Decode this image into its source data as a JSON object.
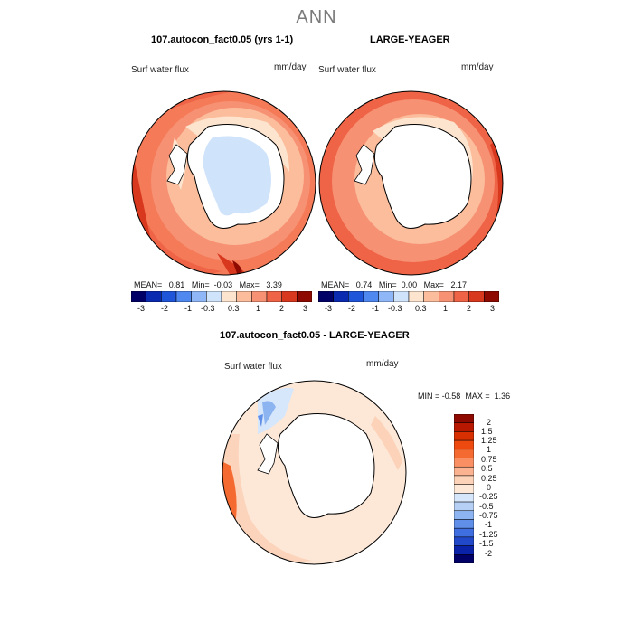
{
  "figure_title": "ANN",
  "palette_levels": [
    -3,
    -2,
    -1,
    -0.3,
    0.3,
    1,
    2,
    3
  ],
  "panels": [
    {
      "title": "107.autocon_fact0.05 (yrs 1-1)",
      "variable": "Surf water flux",
      "units": "mm/day",
      "stats": {
        "mean_label": "MEAN=",
        "mean": "0.81",
        "min_label": "Min=",
        "min": "-0.03",
        "max_label": "Max=",
        "max": "3.39"
      },
      "colorbar_ticks": [
        "-3",
        "-2",
        "-1",
        "-0.3",
        "0.3",
        "1",
        "2",
        "3"
      ]
    },
    {
      "title": "LARGE-YEAGER",
      "variable": "Surf water flux",
      "units": "mm/day",
      "stats": {
        "mean_label": "MEAN=",
        "mean": "0.74",
        "min_label": "Min=",
        "min": "0.00",
        "max_label": "Max=",
        "max": "2.17"
      },
      "colorbar_ticks": [
        "-3",
        "-2",
        "-1",
        "-0.3",
        "0.3",
        "1",
        "2",
        "3"
      ]
    }
  ],
  "difference": {
    "title": "107.autocon_fact0.05 - LARGE-YEAGER",
    "variable": "Surf water flux",
    "units": "mm/day",
    "min_label": "MIN =",
    "min": "-0.58",
    "max_label": "MAX =",
    "max": "1.36",
    "colorbar_ticks": [
      "2",
      "1.5",
      "1.25",
      "1",
      "0.75",
      "0.5",
      "0.25",
      "0",
      "-0.25",
      "-0.5",
      "-0.75",
      "-1",
      "-1.25",
      "-1.5",
      "-2"
    ]
  },
  "colors": {
    "abs_palette": [
      "#000066",
      "#0a2ab0",
      "#1f55d8",
      "#4f88ef",
      "#8fb7f7",
      "#cfe3fb",
      "#fde4cf",
      "#fbbd9c",
      "#f79174",
      "#ef6446",
      "#d8381e",
      "#8e0a00"
    ],
    "diff_palette": [
      "#8e0a00",
      "#b81800",
      "#d83000",
      "#ee4a10",
      "#f56a30",
      "#f98f62",
      "#fbb290",
      "#fcd2b8",
      "#fde8d8",
      "#d6e6fb",
      "#b6d0f5",
      "#8cb4f0",
      "#5f8fe8",
      "#3f6ee0",
      "#2048c8",
      "#0a22a8",
      "#000066"
    ]
  }
}
